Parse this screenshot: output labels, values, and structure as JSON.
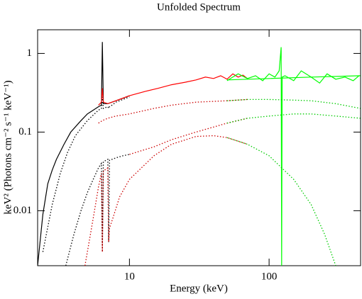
{
  "chart_data": {
    "type": "line",
    "title": "Unfolded Spectrum",
    "xlabel": "Energy (keV)",
    "ylabel": "keV² (Photons cm⁻² s⁻¹ keV⁻¹)",
    "xscale": "log",
    "yscale": "log",
    "xlim": [
      2.2,
      452
    ],
    "xticks": [
      10,
      100
    ],
    "ylim": [
      0.002,
      2
    ],
    "yticks": [
      0.01,
      0.1,
      1
    ],
    "series": [
      {
        "color": "#000000",
        "style": "solid",
        "x": [
          2.2,
          2.4,
          2.6,
          2.8,
          3,
          3.4,
          3.8,
          4.5,
          5,
          5.5,
          6,
          6.3,
          6.4,
          6.5,
          7,
          8,
          9,
          10
        ],
        "values": [
          0.002,
          0.009,
          0.022,
          0.033,
          0.045,
          0.07,
          0.1,
          0.14,
          0.17,
          0.19,
          0.21,
          0.22,
          1.4,
          0.23,
          0.23,
          0.25,
          0.27,
          0.29
        ]
      },
      {
        "color": "#ff0000",
        "style": "solid",
        "x": [
          6,
          6.3,
          6.4,
          6.5,
          7,
          8,
          10,
          13,
          16,
          20,
          25,
          30,
          35,
          40,
          45,
          50,
          55,
          60,
          65,
          70
        ],
        "values": [
          0.22,
          0.24,
          0.36,
          0.24,
          0.23,
          0.25,
          0.29,
          0.33,
          0.36,
          0.4,
          0.43,
          0.46,
          0.5,
          0.48,
          0.52,
          0.47,
          0.55,
          0.5,
          0.53,
          0.48
        ]
      },
      {
        "color": "#00ff00",
        "style": "solid",
        "x": [
          50,
          55,
          60,
          70,
          80,
          90,
          100,
          110,
          118,
          122,
          123,
          124,
          130,
          150,
          170,
          200,
          230,
          260,
          300,
          350,
          400,
          440
        ],
        "values": [
          0.45,
          0.5,
          0.55,
          0.48,
          0.52,
          0.45,
          0.55,
          0.5,
          0.6,
          1.2,
          0.002,
          0.5,
          0.52,
          0.45,
          0.6,
          0.5,
          0.42,
          0.55,
          0.47,
          0.5,
          0.45,
          0.52
        ]
      },
      {
        "color": "#00ff00",
        "style": "solid",
        "x": [
          50,
          100,
          200,
          450
        ],
        "values": [
          0.46,
          0.48,
          0.5,
          0.52
        ]
      },
      {
        "color": "#000000",
        "style": "dotted",
        "x": [
          2.4,
          2.8,
          3.2,
          3.6,
          4.1,
          5,
          6,
          6.3,
          6.4,
          6.5,
          7,
          7.1,
          7.2,
          7.5,
          8,
          10
        ],
        "values": [
          0.003,
          0.012,
          0.03,
          0.055,
          0.09,
          0.14,
          0.19,
          0.2,
          0.28,
          0.2,
          0.21,
          0.2,
          0.21,
          0.22,
          0.24,
          0.28
        ]
      },
      {
        "color": "#000000",
        "style": "dotted",
        "x": [
          3.5,
          4,
          4.5,
          5,
          5.5,
          6,
          6.3,
          6.4,
          6.5,
          7,
          7.1,
          7.2,
          7.5,
          8,
          9,
          10
        ],
        "values": [
          0.002,
          0.005,
          0.01,
          0.017,
          0.025,
          0.035,
          0.04,
          0.003,
          0.042,
          0.045,
          0.004,
          0.044,
          0.045,
          0.047,
          0.05,
          0.052
        ]
      },
      {
        "color": "#cc0000",
        "style": "dotted",
        "x": [
          6,
          6.4,
          7,
          8,
          10,
          15,
          20,
          30,
          50,
          70
        ],
        "values": [
          0.13,
          0.14,
          0.15,
          0.16,
          0.17,
          0.2,
          0.22,
          0.24,
          0.25,
          0.26
        ]
      },
      {
        "color": "#cc0000",
        "style": "dotted",
        "x": [
          4.8,
          5.5,
          6,
          6.3,
          6.4,
          6.5,
          7,
          7.1,
          7.2,
          7.6,
          8.5,
          10,
          15,
          20,
          30,
          40,
          50,
          70
        ],
        "values": [
          0.002,
          0.008,
          0.02,
          0.03,
          0.003,
          0.032,
          0.035,
          0.004,
          0.006,
          0.008,
          0.015,
          0.025,
          0.05,
          0.07,
          0.088,
          0.09,
          0.085,
          0.07
        ]
      },
      {
        "color": "#cc0000",
        "style": "dotted",
        "x": [
          10,
          15,
          20,
          30,
          50,
          70
        ],
        "values": [
          0.052,
          0.065,
          0.08,
          0.1,
          0.13,
          0.15
        ]
      },
      {
        "color": "#00cc00",
        "style": "dotted",
        "x": [
          50,
          70,
          100,
          150,
          200,
          300,
          450
        ],
        "values": [
          0.25,
          0.26,
          0.26,
          0.255,
          0.25,
          0.23,
          0.2
        ]
      },
      {
        "color": "#00cc00",
        "style": "dotted",
        "x": [
          50,
          70,
          100,
          150,
          200,
          250,
          300
        ],
        "values": [
          0.085,
          0.07,
          0.05,
          0.025,
          0.012,
          0.005,
          0.002
        ]
      },
      {
        "color": "#00cc00",
        "style": "dotted",
        "x": [
          50,
          70,
          100,
          150,
          200,
          300,
          450
        ],
        "values": [
          0.13,
          0.15,
          0.16,
          0.17,
          0.17,
          0.16,
          0.15
        ]
      }
    ]
  }
}
